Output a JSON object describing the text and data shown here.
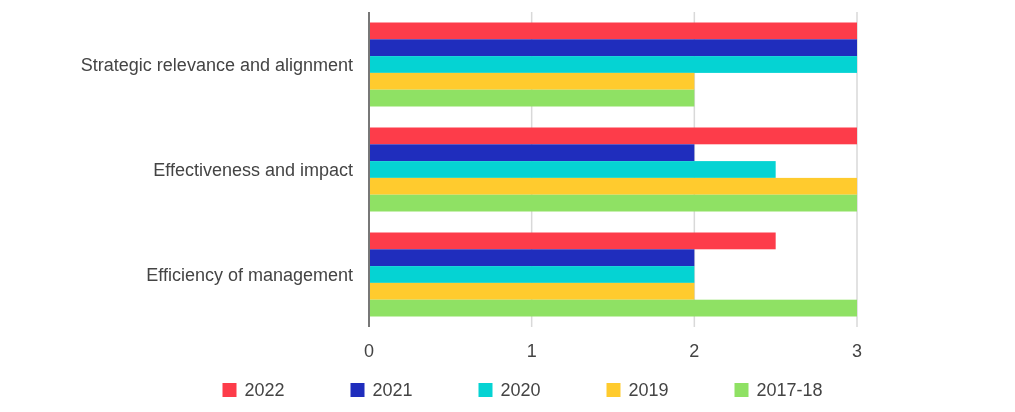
{
  "chart_data": {
    "type": "bar",
    "orientation": "horizontal",
    "categories": [
      "Strategic relevance and alignment",
      "Effectiveness and impact",
      "Efficiency of management"
    ],
    "series": [
      {
        "name": "2022",
        "color": "#fd3c4a",
        "values": [
          3,
          3,
          2.5
        ]
      },
      {
        "name": "2021",
        "color": "#1f2dbd",
        "values": [
          3,
          2,
          2
        ]
      },
      {
        "name": "2020",
        "color": "#05d3d3",
        "values": [
          3,
          2.5,
          2
        ]
      },
      {
        "name": "2019",
        "color": "#ffcb2e",
        "values": [
          2,
          3,
          2
        ]
      },
      {
        "name": "2017-18",
        "color": "#8fe164",
        "values": [
          2,
          3,
          3
        ]
      }
    ],
    "xlim": [
      0,
      3
    ],
    "xticks": [
      0,
      1,
      2,
      3
    ],
    "grid": "x",
    "legend": "bottom"
  }
}
